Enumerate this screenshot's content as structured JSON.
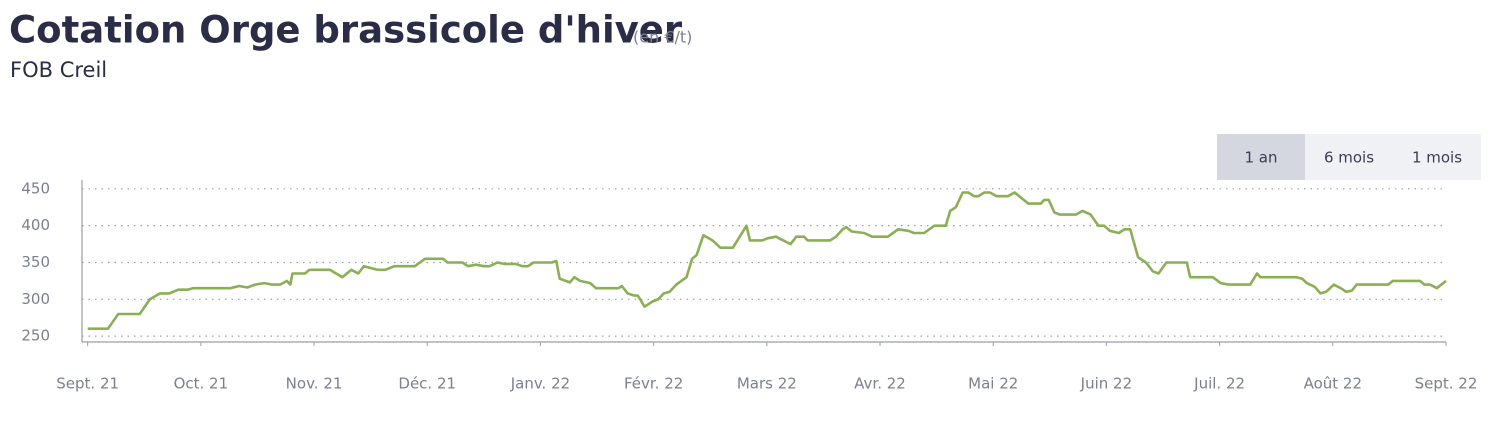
{
  "chart_data": {
    "type": "line",
    "title": "Cotation Orge brassicole d'hiver",
    "unit": "(en €/t)",
    "subtitle": "FOB Creil",
    "xlim": [
      -0.05,
      12
    ],
    "xticks": [
      {
        "value": 0,
        "label": "Sept. 21"
      },
      {
        "value": 1,
        "label": "Oct. 21"
      },
      {
        "value": 2,
        "label": "Nov. 21"
      },
      {
        "value": 3,
        "label": "Déc. 21"
      },
      {
        "value": 4,
        "label": "Janv. 22"
      },
      {
        "value": 5,
        "label": "Févr. 22"
      },
      {
        "value": 6,
        "label": "Mars 22"
      },
      {
        "value": 7,
        "label": "Avr. 22"
      },
      {
        "value": 8,
        "label": "Mai 22"
      },
      {
        "value": 9,
        "label": "Juin 22"
      },
      {
        "value": 10,
        "label": "Juil. 22"
      },
      {
        "value": 11,
        "label": "Août 22"
      },
      {
        "value": 12,
        "label": "Sept. 22"
      }
    ],
    "ylim": [
      242,
      462
    ],
    "yticks": [
      250,
      300,
      350,
      400,
      450
    ],
    "grid": true,
    "color": "#8aaf55",
    "x": [
      0,
      0.18,
      0.27,
      0.46,
      0.55,
      0.64,
      0.72,
      0.8,
      0.88,
      0.93,
      1.26,
      1.34,
      1.41,
      1.48,
      1.56,
      1.63,
      1.7,
      1.76,
      1.79,
      1.81,
      1.92,
      1.96,
      2.14,
      2.25,
      2.33,
      2.39,
      2.44,
      2.56,
      2.63,
      2.71,
      2.89,
      2.98,
      3.14,
      3.18,
      3.31,
      3.36,
      3.43,
      3.5,
      3.55,
      3.62,
      3.68,
      3.78,
      3.84,
      3.89,
      3.94,
      4.1,
      4.14,
      4.17,
      4.26,
      4.3,
      4.35,
      4.44,
      4.49,
      4.69,
      4.72,
      4.77,
      4.83,
      4.86,
      4.92,
      4.99,
      5.04,
      5.09,
      5.14,
      5.2,
      5.29,
      5.34,
      5.38,
      5.44,
      5.52,
      5.59,
      5.7,
      5.82,
      5.85,
      5.96,
      6.01,
      6.08,
      6.21,
      6.26,
      6.33,
      6.36,
      6.56,
      6.61,
      6.67,
      6.7,
      6.75,
      6.86,
      6.93,
      7.07,
      7.16,
      7.25,
      7.3,
      7.39,
      7.48,
      7.58,
      7.62,
      7.67,
      7.73,
      7.78,
      7.83,
      7.87,
      7.92,
      7.97,
      8.03,
      8.13,
      8.19,
      8.31,
      8.42,
      8.45,
      8.49,
      8.54,
      8.59,
      8.73,
      8.79,
      8.86,
      8.93,
      8.98,
      9.03,
      9.11,
      9.16,
      9.21,
      9.28,
      9.35,
      9.41,
      9.46,
      9.53,
      9.71,
      9.74,
      9.94,
      10.01,
      10.08,
      10.27,
      10.33,
      10.36,
      10.68,
      10.73,
      10.77,
      10.84,
      10.89,
      10.94,
      11.01,
      11.07,
      11.12,
      11.17,
      11.21,
      11.49,
      11.53,
      11.77,
      11.81,
      11.86,
      11.92,
      12.0
    ],
    "values": [
      260,
      260,
      280,
      280,
      300,
      308,
      308,
      313,
      313,
      315,
      315,
      318,
      316,
      320,
      322,
      320,
      320,
      325,
      320,
      335,
      335,
      340,
      340,
      330,
      340,
      335,
      345,
      340,
      340,
      345,
      345,
      355,
      355,
      350,
      350,
      345,
      347,
      345,
      345,
      350,
      348,
      348,
      345,
      345,
      350,
      350,
      352,
      328,
      323,
      330,
      325,
      322,
      315,
      315,
      318,
      308,
      305,
      305,
      290,
      297,
      300,
      308,
      310,
      320,
      330,
      355,
      360,
      387,
      380,
      370,
      370,
      400,
      380,
      380,
      383,
      385,
      375,
      385,
      385,
      380,
      380,
      385,
      395,
      398,
      392,
      390,
      385,
      385,
      395,
      393,
      390,
      390,
      400,
      400,
      420,
      425,
      445,
      445,
      440,
      440,
      445,
      445,
      440,
      440,
      445,
      430,
      430,
      435,
      435,
      418,
      415,
      415,
      420,
      415,
      400,
      400,
      393,
      390,
      395,
      395,
      357,
      350,
      338,
      335,
      350,
      350,
      330,
      330,
      322,
      320,
      320,
      335,
      330,
      330,
      328,
      322,
      317,
      308,
      310,
      320,
      315,
      310,
      312,
      320,
      320,
      325,
      325,
      320,
      320,
      315,
      325
    ]
  },
  "range_buttons": [
    "1 an",
    "6 mois",
    "1 mois"
  ]
}
